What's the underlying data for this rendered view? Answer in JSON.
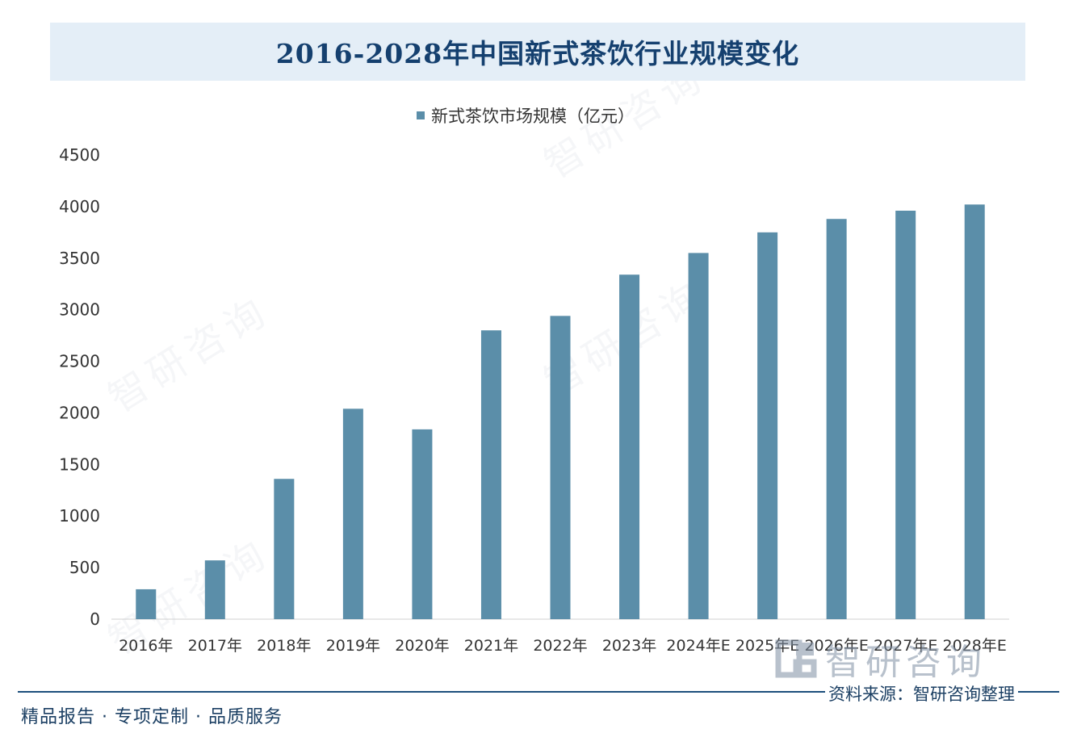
{
  "chart_data": {
    "type": "bar",
    "title": "2016-2028年中国新式茶饮行业规模变化",
    "categories": [
      "2016年",
      "2017年",
      "2018年",
      "2019年",
      "2020年",
      "2021年",
      "2022年",
      "2023年",
      "2024年E",
      "2025年E",
      "2026年E",
      "2027年E",
      "2028年E"
    ],
    "series": [
      {
        "name": "新式茶饮市场规模（亿元）",
        "values": [
          290,
          570,
          1360,
          2040,
          1840,
          2800,
          2940,
          3340,
          3550,
          3750,
          3880,
          3960,
          4020
        ]
      }
    ],
    "ylim": [
      0,
      4500
    ],
    "yticks": [
      0,
      500,
      1000,
      1500,
      2000,
      2500,
      3000,
      3500,
      4000,
      4500
    ],
    "xlabel": "",
    "ylabel": "",
    "legend": "top-center",
    "grid": false,
    "bar_color": "#5b8ea9"
  },
  "footer": {
    "left": "精品报告 · 专项定制 · 品质服务",
    "source": "资料来源：智研咨询整理"
  },
  "branding": {
    "logo_text": "智研咨询",
    "logo_icon": "zhiyan-logo-icon"
  },
  "colors": {
    "title_bg": "#e4eef7",
    "title_text": "#15406f",
    "bar": "#5b8ea9",
    "footer_line": "#1d4f7c"
  }
}
